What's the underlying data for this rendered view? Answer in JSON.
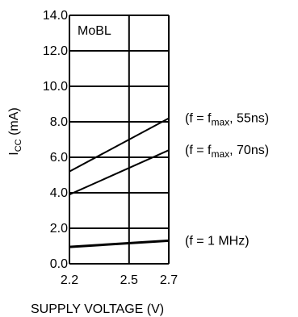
{
  "chart_data": {
    "type": "line",
    "title": "",
    "xlabel": "SUPPLY VOLTAGE (V)",
    "ylabel": {
      "main": "I",
      "sub": "CC",
      "rest": " (mA)"
    },
    "xlim": [
      2.2,
      2.7
    ],
    "ylim": [
      0,
      14
    ],
    "x_ticks": [
      {
        "value": 2.2,
        "label": "2.2"
      },
      {
        "value": 2.5,
        "label": "2.5"
      },
      {
        "value": 2.7,
        "label": "2.7"
      }
    ],
    "y_ticks": [
      {
        "value": 0,
        "label": "0.0"
      },
      {
        "value": 2,
        "label": "2.0"
      },
      {
        "value": 4,
        "label": "4.0"
      },
      {
        "value": 6,
        "label": "6.0"
      },
      {
        "value": 8,
        "label": "8.0"
      },
      {
        "value": 10,
        "label": "10.0"
      },
      {
        "value": 12,
        "label": "12.0"
      },
      {
        "value": 14,
        "label": "14.0"
      }
    ],
    "grid": true,
    "box_label": "MoBL",
    "series": [
      {
        "x": [
          2.2,
          2.7
        ],
        "y": [
          5.2,
          8.2
        ],
        "label": {
          "pre": "(f = f",
          "sub": "max",
          "post": ", 55ns)"
        },
        "thick": false
      },
      {
        "x": [
          2.2,
          2.7
        ],
        "y": [
          3.9,
          6.4
        ],
        "label": {
          "pre": "(f = f",
          "sub": "max",
          "post": ", 70ns)"
        },
        "thick": false
      },
      {
        "x": [
          2.2,
          2.7
        ],
        "y": [
          0.95,
          1.3
        ],
        "label": {
          "pre": "(f = 1 MHz)",
          "sub": "",
          "post": ""
        },
        "thick": true
      }
    ]
  }
}
